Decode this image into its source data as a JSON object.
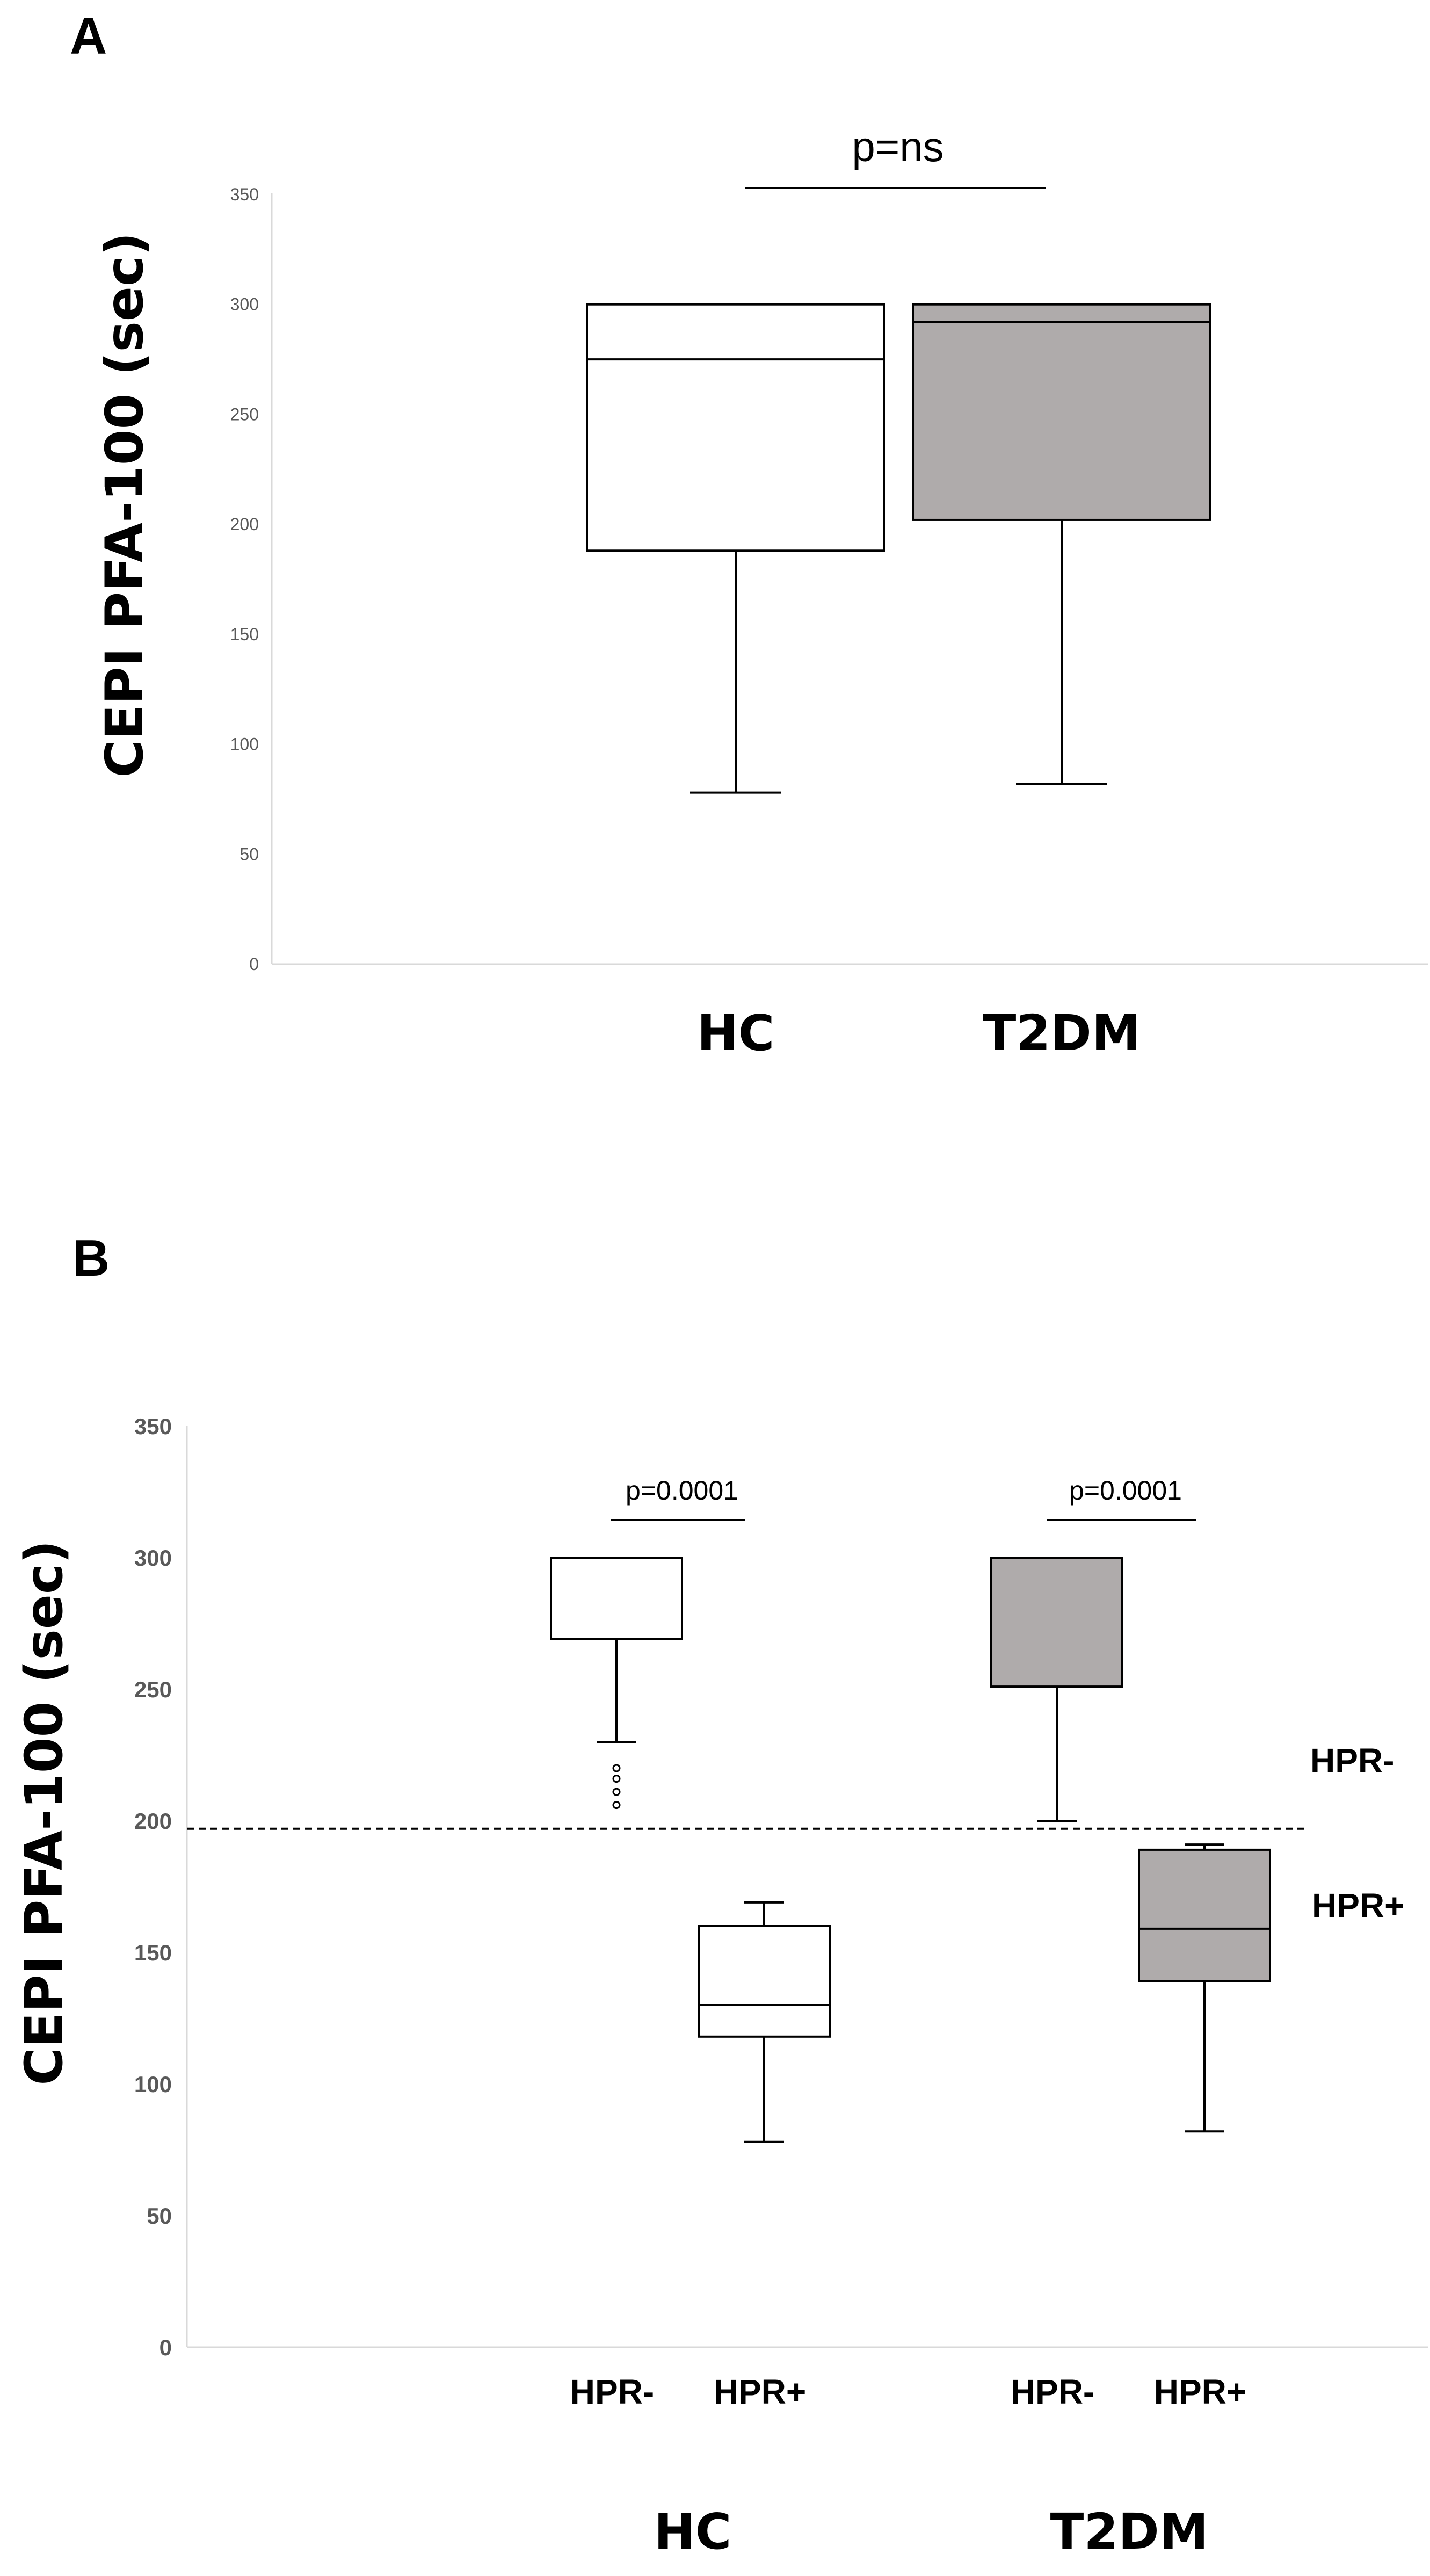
{
  "chart_data": [
    {
      "type": "boxplot",
      "panel": "A",
      "ylabel": "CEPI PFA-100 (sec)",
      "ylim": [
        0,
        350
      ],
      "yticks": [
        "0",
        "50",
        "100",
        "150",
        "200",
        "250",
        "300",
        "350"
      ],
      "categories": [
        "HC",
        "T2DM"
      ],
      "boxes": [
        {
          "name": "HC",
          "min": 78,
          "q1": 188,
          "median": 275,
          "q3": 300,
          "max": 300,
          "fill": "#ffffff"
        },
        {
          "name": "T2DM",
          "min": 82,
          "q1": 202,
          "median": 292,
          "q3": 300,
          "max": 300,
          "fill": "#afabab"
        }
      ],
      "annotations": [
        {
          "text": "p=ns",
          "from": "HC",
          "to": "T2DM"
        }
      ]
    },
    {
      "type": "boxplot",
      "panel": "B",
      "ylabel": "CEPI PFA-100 (sec)",
      "ylim": [
        0,
        350
      ],
      "yticks": [
        "0",
        "50",
        "100",
        "150",
        "200",
        "250",
        "300",
        "350"
      ],
      "groups": [
        "HC",
        "T2DM"
      ],
      "categories": [
        "HPR-",
        "HPR+",
        "HPR-",
        "HPR+"
      ],
      "boxes": [
        {
          "name": "HC HPR-",
          "min": 230,
          "q1": 269,
          "median": 300,
          "q3": 300,
          "max": 300,
          "fill": "#ffffff",
          "outliers": [
            206,
            211,
            216,
            220
          ]
        },
        {
          "name": "HC HPR+",
          "min": 78,
          "q1": 118,
          "median": 130,
          "q3": 160,
          "max": 169,
          "fill": "#ffffff",
          "outliers": []
        },
        {
          "name": "T2DM HPR-",
          "min": 200,
          "q1": 251,
          "median": 300,
          "q3": 300,
          "max": 300,
          "fill": "#afabab",
          "outliers": []
        },
        {
          "name": "T2DM HPR+",
          "min": 82,
          "q1": 139,
          "median": 159,
          "q3": 189,
          "max": 191,
          "fill": "#afabab",
          "outliers": []
        }
      ],
      "threshold": {
        "value": 197,
        "above_label": "HPR-",
        "below_label": "HPR+"
      },
      "annotations": [
        {
          "text": "p=0.0001",
          "group": "HC"
        },
        {
          "text": "p=0.0001",
          "group": "T2DM"
        }
      ]
    }
  ]
}
